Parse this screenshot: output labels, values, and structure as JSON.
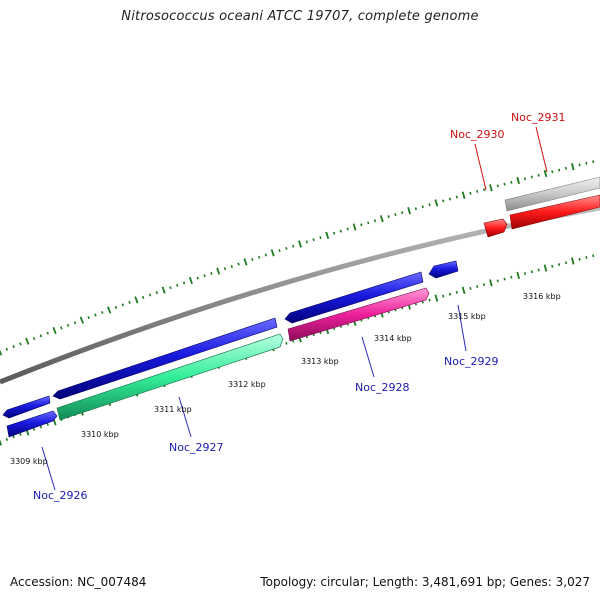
{
  "title": "Nitrosococcus oceani ATCC 19707, complete genome",
  "footer": {
    "accession": "Accession: NC_007484",
    "topology": "Topology: circular; Length: 3,481,691 bp; Genes: 3,027"
  },
  "colors": {
    "forward_gene": "#1515d4",
    "reverse_gene_2927": "#33ee99",
    "reverse_gene_2928": "#ee1f9a",
    "gene_2930": "#ff1a1a",
    "gene_2931": "#c6c6c6",
    "backbone": "#888888",
    "ticks": "#1e7a1e",
    "forward_label": "#1a1ab0",
    "red_label": "#cc1010"
  },
  "scale": {
    "unit": "kbp",
    "labels": [
      "3309 kbp",
      "3310 kbp",
      "3311 kbp",
      "3312 kbp",
      "3313 kbp",
      "3314 kbp",
      "3315 kbp",
      "3316 kbp"
    ]
  },
  "genes": [
    {
      "id": "Noc_2926",
      "label": "Noc_2926",
      "color_key": "forward_gene",
      "label_color_key": "forward_label"
    },
    {
      "id": "Noc_2927",
      "label": "Noc_2927",
      "color_key": "reverse_gene_2927",
      "label_color_key": "forward_label"
    },
    {
      "id": "Noc_2928",
      "label": "Noc_2928",
      "color_key": "reverse_gene_2928",
      "label_color_key": "forward_label"
    },
    {
      "id": "Noc_2929",
      "label": "Noc_2929",
      "color_key": "forward_gene",
      "label_color_key": "forward_label"
    },
    {
      "id": "Noc_2930",
      "label": "Noc_2930",
      "color_key": "gene_2930",
      "label_color_key": "red_label"
    },
    {
      "id": "Noc_2931",
      "label": "Noc_2931",
      "color_key": "gene_2931",
      "label_color_key": "red_label"
    }
  ]
}
